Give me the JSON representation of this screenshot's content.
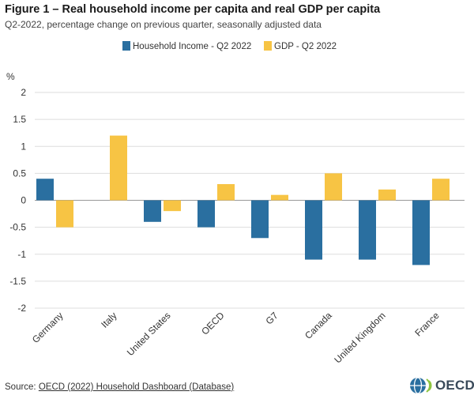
{
  "title": "Figure 1 – Real household income per capita and real GDP per capita",
  "subtitle": "Q2-2022, percentage change on previous quarter, seasonally adjusted data",
  "source": {
    "prefix": "Source: ",
    "link_text": "OECD (2022) Household Dashboard (Database)"
  },
  "logo": {
    "text": "OECD",
    "icon": "oecd-globe-icon"
  },
  "colors": {
    "income": "#2a6fa0",
    "gdp": "#f7c444",
    "grid": "#dddddd",
    "zero": "#999999"
  },
  "chart_data": {
    "type": "bar",
    "ylabel": "%",
    "ylim": [
      -2,
      2
    ],
    "yticks": [
      2,
      1.5,
      1,
      0.5,
      0,
      -0.5,
      -1,
      -1.5,
      -2
    ],
    "ytick_labels": [
      "2",
      "1.5",
      "1",
      "0.5",
      "0",
      "-0.5",
      "-1",
      "-1.5",
      "-2"
    ],
    "grid": true,
    "legend_position": "top-center",
    "categories": [
      "Germany",
      "Italy",
      "United States",
      "OECD",
      "G7",
      "Canada",
      "United Kingdom",
      "France"
    ],
    "series": [
      {
        "name": "Household Income - Q2 2022",
        "color": "#2a6fa0",
        "values": [
          0.4,
          null,
          -0.4,
          -0.5,
          -0.7,
          -1.1,
          -1.1,
          -1.2
        ]
      },
      {
        "name": "GDP - Q2 2022",
        "color": "#f7c444",
        "values": [
          -0.5,
          1.2,
          -0.2,
          0.3,
          0.1,
          0.5,
          0.2,
          0.4
        ]
      }
    ]
  }
}
